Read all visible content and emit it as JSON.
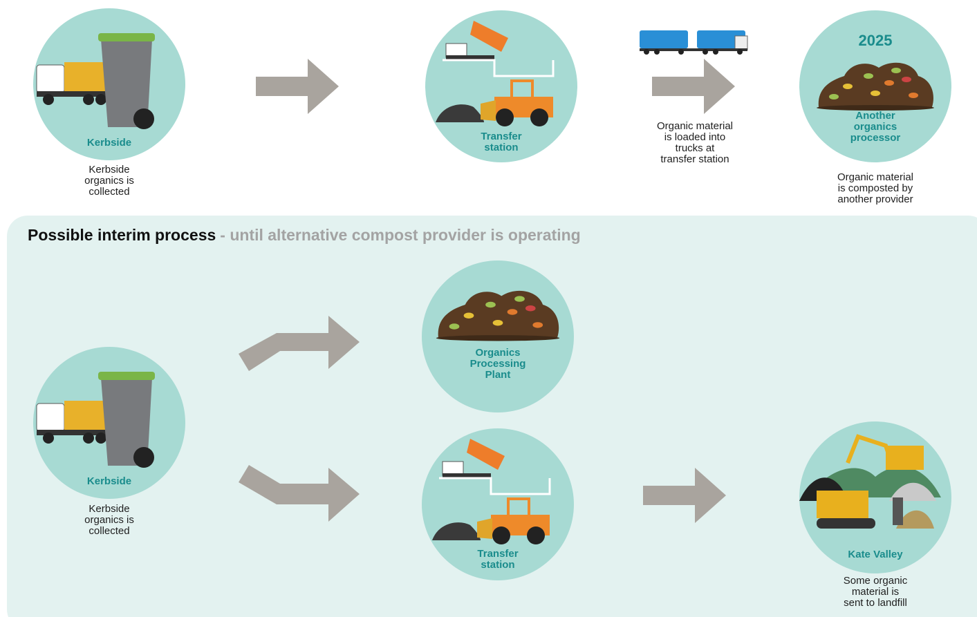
{
  "top": {
    "nodes": [
      {
        "label": [
          "Kerbside"
        ],
        "caption": [
          "Kerbside",
          "organics is",
          "collected"
        ]
      },
      {
        "label": [
          "Transfer",
          "station"
        ]
      },
      {
        "year": "2025",
        "label": [
          "Another",
          "organics",
          "processor"
        ],
        "caption": [
          "Organic material",
          "is composted by",
          "another provider"
        ]
      }
    ],
    "arrow_caption": [
      "Organic material",
      "is loaded into",
      "trucks at",
      "transfer station"
    ]
  },
  "interim": {
    "title": "Possible interim process",
    "subtitle": "- until alternative compost provider is operating",
    "nodes": [
      {
        "label": [
          "Kerbside"
        ],
        "caption": [
          "Kerbside",
          "organics is",
          "collected"
        ]
      },
      {
        "label": [
          "Organics",
          "Processing",
          "Plant"
        ]
      },
      {
        "label": [
          "Transfer",
          "station"
        ]
      },
      {
        "label": [
          "Kate Valley"
        ],
        "caption": [
          "Some organic",
          "material is",
          "sent to landfill"
        ]
      }
    ]
  }
}
